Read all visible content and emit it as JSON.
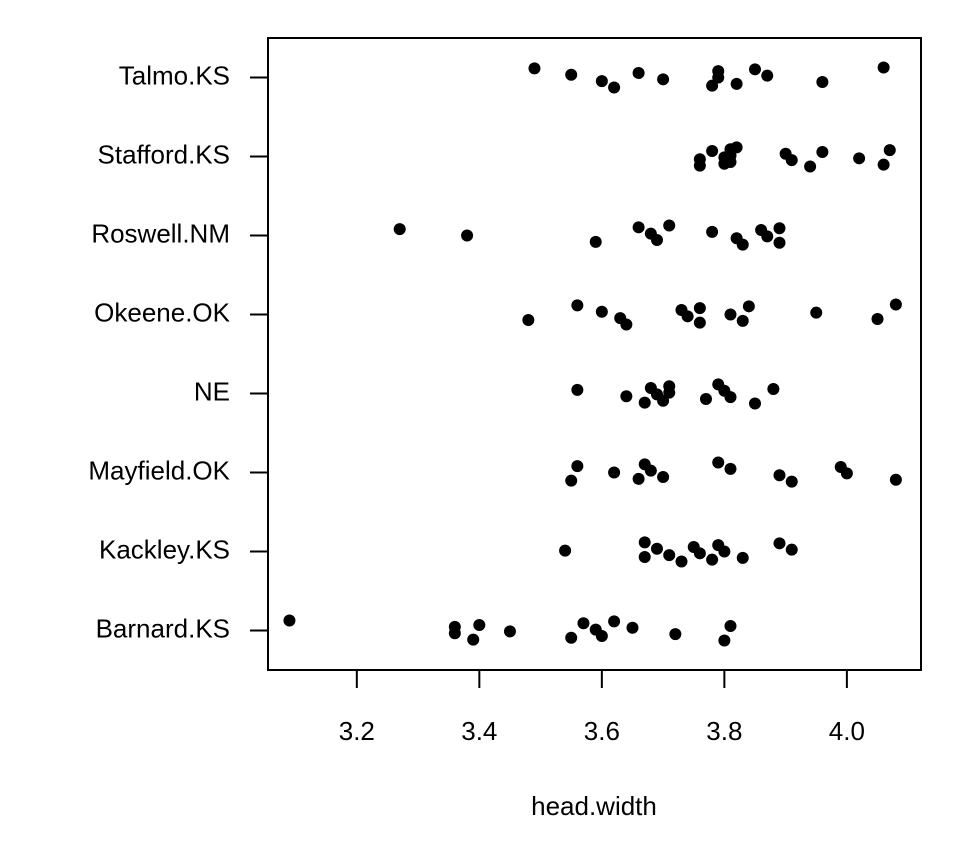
{
  "chart_data": {
    "type": "strip",
    "x_label": "head.width",
    "categories": [
      "Barnard.KS",
      "Kackley.KS",
      "Mayfield.OK",
      "NE",
      "Okeene.OK",
      "Roswell.NM",
      "Stafford.KS",
      "Talmo.KS"
    ],
    "values": [
      [
        3.09,
        3.36,
        3.36,
        3.39,
        3.4,
        3.45,
        3.55,
        3.57,
        3.59,
        3.6,
        3.62,
        3.65,
        3.72,
        3.8,
        3.81
      ],
      [
        3.54,
        3.67,
        3.67,
        3.69,
        3.71,
        3.73,
        3.75,
        3.76,
        3.78,
        3.79,
        3.8,
        3.83,
        3.89,
        3.91
      ],
      [
        3.55,
        3.56,
        3.62,
        3.66,
        3.67,
        3.68,
        3.7,
        3.79,
        3.81,
        3.89,
        3.91,
        3.99,
        4.0,
        4.08
      ],
      [
        3.56,
        3.64,
        3.67,
        3.68,
        3.69,
        3.7,
        3.71,
        3.71,
        3.77,
        3.79,
        3.8,
        3.81,
        3.85,
        3.88
      ],
      [
        3.48,
        3.56,
        3.6,
        3.63,
        3.64,
        3.73,
        3.74,
        3.76,
        3.76,
        3.81,
        3.83,
        3.84,
        3.95,
        4.05,
        4.08
      ],
      [
        3.27,
        3.38,
        3.59,
        3.66,
        3.68,
        3.69,
        3.71,
        3.78,
        3.82,
        3.83,
        3.86,
        3.87,
        3.89,
        3.89
      ],
      [
        3.76,
        3.76,
        3.78,
        3.8,
        3.8,
        3.81,
        3.81,
        3.81,
        3.82,
        3.9,
        3.91,
        3.94,
        3.96,
        4.02,
        4.06,
        4.07
      ],
      [
        3.49,
        3.55,
        3.6,
        3.62,
        3.66,
        3.7,
        3.78,
        3.79,
        3.79,
        3.82,
        3.85,
        3.87,
        3.96,
        4.06
      ]
    ],
    "color": "#000000",
    "xlim": [
      3.055,
      4.121
    ],
    "xticks": [
      3.2,
      3.4,
      3.6,
      3.8,
      {
        "value": 4,
        "label": "4.0"
      }
    ]
  }
}
